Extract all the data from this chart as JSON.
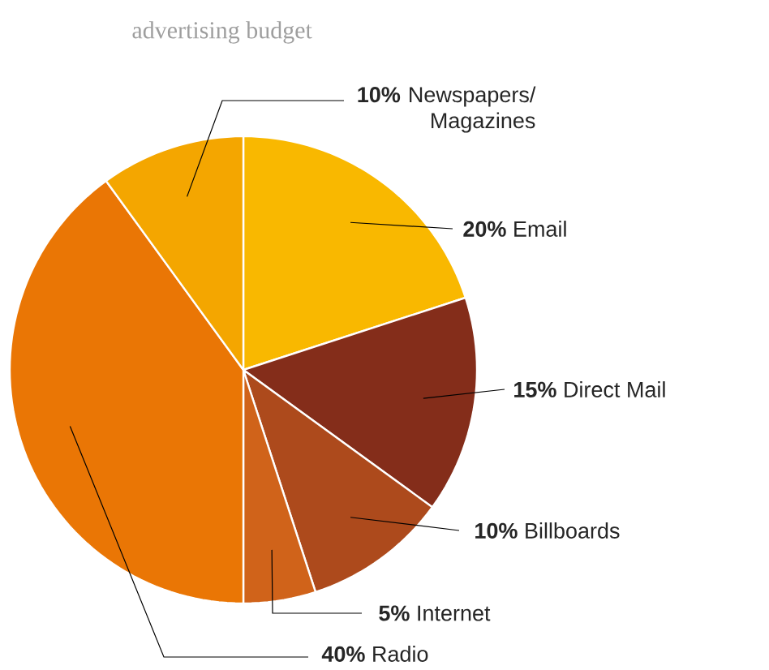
{
  "chart_data": {
    "type": "pie",
    "title": "advertising budget",
    "categories": [
      "Email",
      "Direct Mail",
      "Billboards",
      "Internet",
      "Radio",
      "Newspapers/ Magazines"
    ],
    "values": [
      20,
      15,
      10,
      5,
      40,
      10
    ],
    "value_labels": [
      "20%",
      "15%",
      "10%",
      "5%",
      "40%",
      "10%"
    ],
    "colors": [
      "#f9b800",
      "#842d1a",
      "#ad4a1c",
      "#d0631a",
      "#ea7605",
      "#f4a600"
    ]
  }
}
